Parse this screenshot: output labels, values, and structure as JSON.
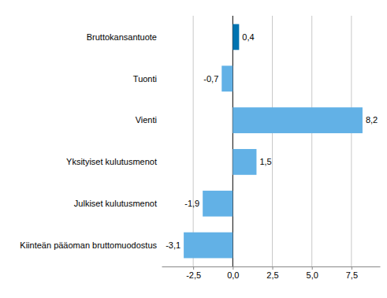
{
  "chart_data": {
    "type": "bar",
    "orientation": "horizontal",
    "categories": [
      "Bruttokansantuote",
      "Tuonti",
      "Vienti",
      "Yksityiset kulutusmenot",
      "Julkiset kulutusmenot",
      "Kiinteän pääoman bruttomuodostus"
    ],
    "values": [
      0.4,
      -0.7,
      8.2,
      1.5,
      -1.9,
      -3.1
    ],
    "value_labels": [
      "0,4",
      "-0,7",
      "8,2",
      "1,5",
      "-1,9",
      "-3,1"
    ],
    "colors": [
      "#0073b0",
      "#62b1e6",
      "#62b1e6",
      "#62b1e6",
      "#62b1e6",
      "#62b1e6"
    ],
    "xlim": [
      -4.5,
      9.3
    ],
    "xticks": [
      {
        "value": -2.5,
        "label": "-2,5"
      },
      {
        "value": 0,
        "label": "0,0"
      },
      {
        "value": 2.5,
        "label": "2,5"
      },
      {
        "value": 5,
        "label": "5,0"
      },
      {
        "value": 7.5,
        "label": "7,5"
      }
    ],
    "grid": true,
    "data_labels": true
  }
}
